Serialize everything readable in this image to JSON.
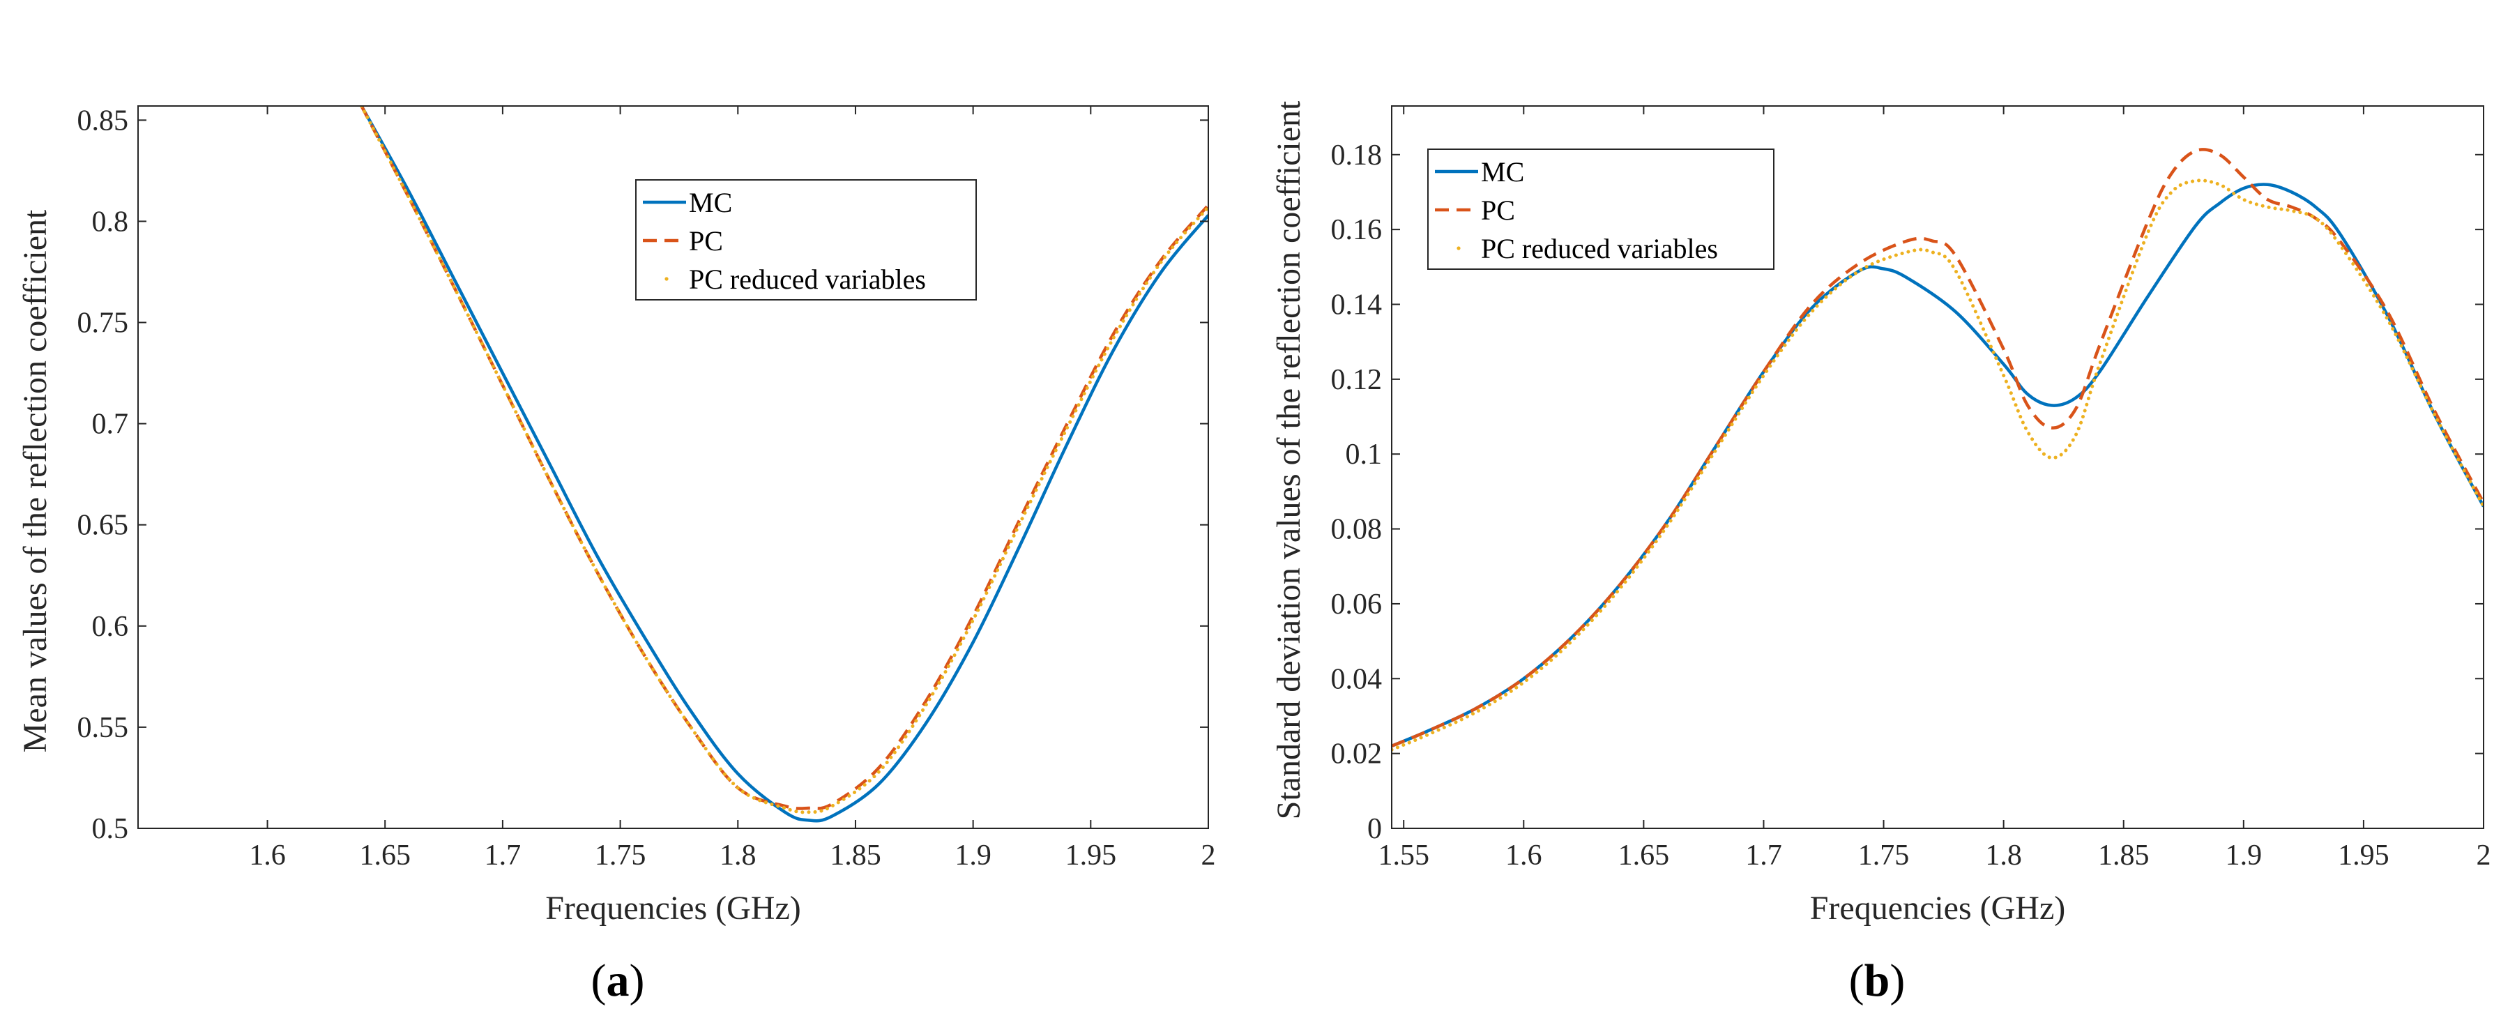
{
  "colors": {
    "mc": "#0072BD",
    "pc": "#D95319",
    "pcr": "#EDB120",
    "axis": "#262626"
  },
  "chart_data": [
    {
      "id": "a",
      "type": "line",
      "panel_label": "a",
      "xlabel": "Frequencies (GHz)",
      "ylabel": "Mean values of the reflection coefficient",
      "xlim": [
        1.545,
        2.0
      ],
      "ylim": [
        0.5,
        0.857
      ],
      "xticks": [
        1.6,
        1.65,
        1.7,
        1.75,
        1.8,
        1.85,
        1.9,
        1.95,
        2
      ],
      "xtick_labels": [
        "1.6",
        "1.65",
        "1.7",
        "1.75",
        "1.8",
        "1.85",
        "1.9",
        "1.95",
        "2"
      ],
      "yticks": [
        0.5,
        0.55,
        0.6,
        0.65,
        0.7,
        0.75,
        0.8,
        0.85
      ],
      "ytick_labels": [
        "0.5",
        "0.55",
        "0.6",
        "0.65",
        "0.7",
        "0.75",
        "0.8",
        "0.85"
      ],
      "legend_position": "top-center",
      "series": [
        {
          "name": "MC",
          "style": "solid",
          "x": [
            1.64,
            1.66,
            1.68,
            1.7,
            1.72,
            1.74,
            1.76,
            1.78,
            1.8,
            1.82,
            1.83,
            1.84,
            1.86,
            1.88,
            1.9,
            1.92,
            1.94,
            1.96,
            1.98,
            2.0
          ],
          "y": [
            0.857,
            0.815,
            0.77,
            0.725,
            0.68,
            0.635,
            0.595,
            0.558,
            0.527,
            0.508,
            0.504,
            0.506,
            0.522,
            0.552,
            0.592,
            0.64,
            0.69,
            0.737,
            0.775,
            0.803
          ]
        },
        {
          "name": "PC",
          "style": "dashed",
          "x": [
            1.64,
            1.66,
            1.68,
            1.7,
            1.72,
            1.74,
            1.76,
            1.78,
            1.8,
            1.82,
            1.83,
            1.84,
            1.86,
            1.88,
            1.9,
            1.92,
            1.94,
            1.96,
            1.98,
            2.0
          ],
          "y": [
            0.857,
            0.812,
            0.766,
            0.719,
            0.672,
            0.627,
            0.586,
            0.55,
            0.52,
            0.511,
            0.51,
            0.512,
            0.53,
            0.563,
            0.605,
            0.653,
            0.7,
            0.745,
            0.781,
            0.808
          ]
        },
        {
          "name": "PC reduced variables",
          "style": "dotted",
          "x": [
            1.64,
            1.66,
            1.68,
            1.7,
            1.72,
            1.74,
            1.76,
            1.78,
            1.8,
            1.82,
            1.83,
            1.84,
            1.86,
            1.88,
            1.9,
            1.92,
            1.94,
            1.96,
            1.98,
            2.0
          ],
          "y": [
            0.857,
            0.812,
            0.766,
            0.719,
            0.672,
            0.627,
            0.586,
            0.55,
            0.52,
            0.51,
            0.508,
            0.511,
            0.528,
            0.561,
            0.603,
            0.651,
            0.698,
            0.743,
            0.78,
            0.807
          ]
        }
      ]
    },
    {
      "id": "b",
      "type": "line",
      "panel_label": "b",
      "xlabel": "Frequencies (GHz)",
      "ylabel": "Standard deviation values of the reflection coefficient",
      "xlim": [
        1.545,
        2.0
      ],
      "ylim": [
        0,
        0.193
      ],
      "xticks": [
        1.55,
        1.6,
        1.65,
        1.7,
        1.75,
        1.8,
        1.85,
        1.9,
        1.95,
        2
      ],
      "xtick_labels": [
        "1.55",
        "1.6",
        "1.65",
        "1.7",
        "1.75",
        "1.8",
        "1.85",
        "1.9",
        "1.95",
        "2"
      ],
      "yticks": [
        0,
        0.02,
        0.04,
        0.06,
        0.08,
        0.1,
        0.12,
        0.14,
        0.16,
        0.18
      ],
      "ytick_labels": [
        "0",
        "0.02",
        "0.04",
        "0.06",
        "0.08",
        "0.1",
        "0.12",
        "0.14",
        "0.16",
        "0.18"
      ],
      "legend_position": "top-left",
      "series": [
        {
          "name": "MC",
          "style": "solid",
          "x": [
            1.545,
            1.56,
            1.58,
            1.6,
            1.62,
            1.64,
            1.66,
            1.68,
            1.7,
            1.72,
            1.74,
            1.75,
            1.76,
            1.78,
            1.8,
            1.81,
            1.82,
            1.83,
            1.84,
            1.86,
            1.88,
            1.89,
            1.9,
            1.91,
            1.92,
            1.93,
            1.94,
            1.96,
            1.98,
            2.0
          ],
          "y": [
            0.022,
            0.026,
            0.032,
            0.04,
            0.051,
            0.065,
            0.082,
            0.102,
            0.122,
            0.139,
            0.149,
            0.1495,
            0.147,
            0.138,
            0.124,
            0.116,
            0.113,
            0.115,
            0.122,
            0.142,
            0.161,
            0.167,
            0.171,
            0.172,
            0.17,
            0.166,
            0.159,
            0.137,
            0.11,
            0.086
          ]
        },
        {
          "name": "PC",
          "style": "dashed",
          "x": [
            1.545,
            1.56,
            1.58,
            1.6,
            1.62,
            1.64,
            1.66,
            1.68,
            1.7,
            1.72,
            1.74,
            1.76,
            1.77,
            1.78,
            1.8,
            1.81,
            1.82,
            1.83,
            1.84,
            1.86,
            1.87,
            1.88,
            1.89,
            1.9,
            1.91,
            1.92,
            1.93,
            1.94,
            1.96,
            1.98,
            2.0
          ],
          "y": [
            0.022,
            0.026,
            0.032,
            0.04,
            0.051,
            0.065,
            0.082,
            0.102,
            0.122,
            0.14,
            0.151,
            0.157,
            0.157,
            0.153,
            0.128,
            0.113,
            0.107,
            0.112,
            0.129,
            0.162,
            0.175,
            0.181,
            0.18,
            0.174,
            0.168,
            0.166,
            0.163,
            0.157,
            0.138,
            0.111,
            0.087
          ]
        },
        {
          "name": "PC reduced variables",
          "style": "dotted",
          "x": [
            1.545,
            1.56,
            1.58,
            1.6,
            1.62,
            1.64,
            1.66,
            1.68,
            1.7,
            1.72,
            1.74,
            1.76,
            1.77,
            1.78,
            1.8,
            1.81,
            1.82,
            1.83,
            1.84,
            1.86,
            1.87,
            1.88,
            1.89,
            1.9,
            1.91,
            1.92,
            1.93,
            1.94,
            1.96,
            1.98,
            2.0
          ],
          "y": [
            0.021,
            0.025,
            0.031,
            0.039,
            0.05,
            0.064,
            0.081,
            0.101,
            0.121,
            0.138,
            0.149,
            0.154,
            0.154,
            0.149,
            0.121,
            0.106,
            0.099,
            0.105,
            0.124,
            0.159,
            0.17,
            0.173,
            0.172,
            0.168,
            0.166,
            0.165,
            0.163,
            0.156,
            0.136,
            0.11,
            0.086
          ]
        }
      ]
    }
  ]
}
